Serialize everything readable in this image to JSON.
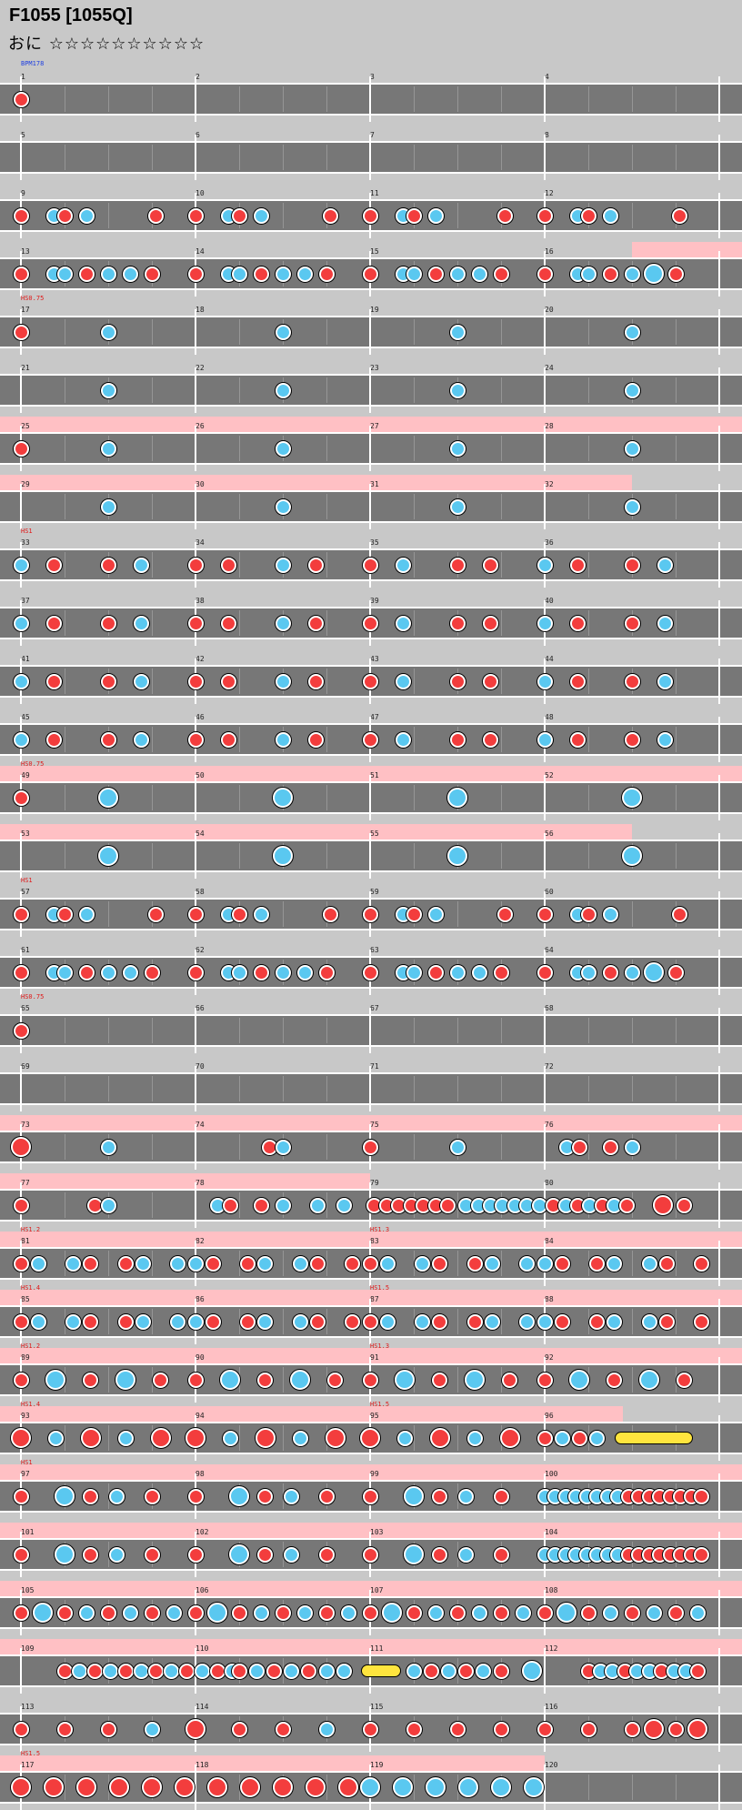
{
  "header": {
    "title": "F1055 [1055Q]",
    "difficulty": "おに ☆☆☆☆☆☆☆☆☆☆"
  },
  "chart_rows": [
    {
      "m": [
        1,
        2,
        3,
        4
      ],
      "ann": [
        {
          "text": "BPM178",
          "pos": 0,
          "color": "blue"
        }
      ],
      "notes": "1",
      "pink": []
    },
    {
      "m": [
        5,
        6,
        7,
        8
      ],
      "ann": [],
      "notes": "",
      "pink": []
    },
    {
      "m": [
        9,
        10,
        11,
        12
      ],
      "ann": [],
      "notes": "dense1",
      "pink": []
    },
    {
      "m": [
        13,
        14,
        15,
        16
      ],
      "ann": [],
      "notes": "dense2",
      "pink": [
        [
          3.5,
          4
        ]
      ]
    },
    {
      "m": [
        17,
        18,
        19,
        20
      ],
      "ann": [
        {
          "text": "HS0.75",
          "pos": 0,
          "color": "red"
        }
      ],
      "notes": "sparse",
      "pink": []
    },
    {
      "m": [
        21,
        22,
        23,
        24
      ],
      "ann": [],
      "notes": "sparse2",
      "pink": []
    },
    {
      "m": [
        25,
        26,
        27,
        28
      ],
      "ann": [],
      "notes": "sparse",
      "pink": [
        [
          0,
          4
        ]
      ]
    },
    {
      "m": [
        29,
        30,
        31,
        32
      ],
      "ann": [],
      "notes": "sparse2",
      "pink": [
        [
          0,
          3.5
        ]
      ]
    },
    {
      "m": [
        33,
        34,
        35,
        36
      ],
      "ann": [
        {
          "text": "HS1",
          "pos": 0,
          "color": "red"
        }
      ],
      "notes": "mid",
      "pink": []
    },
    {
      "m": [
        37,
        38,
        39,
        40
      ],
      "ann": [],
      "notes": "mid",
      "pink": []
    },
    {
      "m": [
        41,
        42,
        43,
        44
      ],
      "ann": [],
      "notes": "mid",
      "pink": []
    },
    {
      "m": [
        45,
        46,
        47,
        48
      ],
      "ann": [],
      "notes": "mid",
      "pink": []
    },
    {
      "m": [
        49,
        50,
        51,
        52
      ],
      "ann": [
        {
          "text": "HS0.75",
          "pos": 0,
          "color": "red"
        }
      ],
      "notes": "bigka",
      "pink": [
        [
          0,
          4
        ]
      ]
    },
    {
      "m": [
        53,
        54,
        55,
        56
      ],
      "ann": [],
      "notes": "bigka2",
      "pink": [
        [
          0,
          3.5
        ]
      ]
    },
    {
      "m": [
        57,
        58,
        59,
        60
      ],
      "ann": [
        {
          "text": "HS1",
          "pos": 0,
          "color": "red"
        }
      ],
      "notes": "dense1",
      "pink": []
    },
    {
      "m": [
        61,
        62,
        63,
        64
      ],
      "ann": [],
      "notes": "dense2",
      "pink": []
    },
    {
      "m": [
        65,
        66,
        67,
        68
      ],
      "ann": [
        {
          "text": "HS0.75",
          "pos": 0,
          "color": "red"
        }
      ],
      "notes": "1",
      "pink": []
    },
    {
      "m": [
        69,
        70,
        71,
        72
      ],
      "ann": [],
      "notes": "",
      "pink": []
    },
    {
      "m": [
        73,
        74,
        75,
        76
      ],
      "ann": [],
      "notes": "sparse3",
      "pink": [
        [
          0,
          4
        ]
      ]
    },
    {
      "m": [
        77,
        78,
        79,
        80
      ],
      "ann": [],
      "notes": "burst",
      "pink": [
        [
          0,
          2
        ]
      ]
    },
    {
      "m": [
        81,
        82,
        83,
        84
      ],
      "ann": [
        {
          "text": "HS1.2",
          "pos": 0,
          "color": "red"
        },
        {
          "text": "HS1.3",
          "pos": 2,
          "color": "red"
        }
      ],
      "notes": "burst2",
      "pink": [
        [
          0,
          4
        ]
      ]
    },
    {
      "m": [
        85,
        86,
        87,
        88
      ],
      "ann": [
        {
          "text": "HS1.4",
          "pos": 0,
          "color": "red"
        },
        {
          "text": "HS1.5",
          "pos": 2,
          "color": "red"
        }
      ],
      "notes": "burst2",
      "pink": [
        [
          0,
          4
        ]
      ]
    },
    {
      "m": [
        89,
        90,
        91,
        92
      ],
      "ann": [
        {
          "text": "HS1.2",
          "pos": 0,
          "color": "red"
        },
        {
          "text": "HS1.3",
          "pos": 2,
          "color": "red"
        }
      ],
      "notes": "mixbig",
      "pink": [
        [
          0,
          4
        ]
      ]
    },
    {
      "m": [
        93,
        94,
        95,
        96
      ],
      "ann": [
        {
          "text": "HS1.4",
          "pos": 0,
          "color": "red"
        },
        {
          "text": "HS1.5",
          "pos": 2,
          "color": "red"
        }
      ],
      "notes": "mixroll",
      "pink": [
        [
          0,
          3.45
        ]
      ]
    },
    {
      "m": [
        97,
        98,
        99,
        100
      ],
      "ann": [
        {
          "text": "HS1",
          "pos": 0,
          "color": "red"
        }
      ],
      "notes": "mixbig2",
      "pink": [
        [
          0,
          4
        ]
      ]
    },
    {
      "m": [
        101,
        102,
        103,
        104
      ],
      "ann": [],
      "notes": "mixbig2",
      "pink": [
        [
          0,
          4
        ]
      ]
    },
    {
      "m": [
        105,
        106,
        107,
        108
      ],
      "ann": [],
      "notes": "mixbig3",
      "pink": [
        [
          0,
          4
        ]
      ]
    },
    {
      "m": [
        109,
        110,
        111,
        112
      ],
      "ann": [],
      "notes": "roll2",
      "pink": [
        [
          0,
          4
        ]
      ]
    },
    {
      "m": [
        113,
        114,
        115,
        116
      ],
      "ann": [],
      "notes": "end1",
      "pink": []
    },
    {
      "m": [
        117,
        118,
        119,
        120
      ],
      "ann": [
        {
          "text": "HS1.5",
          "pos": 0,
          "color": "red"
        }
      ],
      "notes": "end2",
      "pink": [
        [
          0,
          3
        ]
      ]
    }
  ]
}
